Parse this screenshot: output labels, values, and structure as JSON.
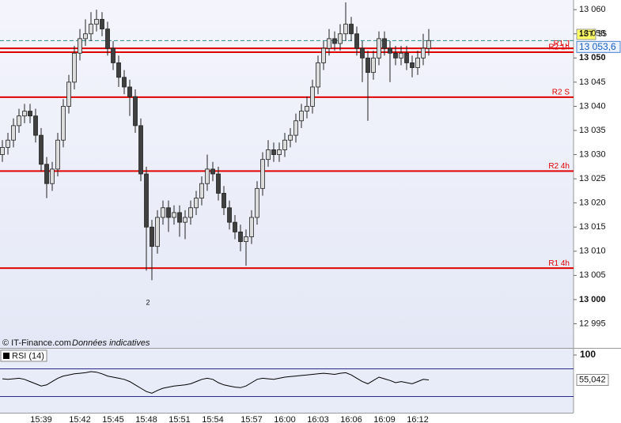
{
  "chart_data": [
    {
      "type": "candlestick",
      "categories": [
        null,
        null,
        null,
        null,
        null,
        null,
        null,
        "15:39",
        null,
        null,
        null,
        null,
        null,
        null,
        "15:42",
        null,
        null,
        null,
        null,
        null,
        "15:45",
        null,
        null,
        null,
        null,
        null,
        "15:48",
        null,
        null,
        null,
        null,
        null,
        "15:51",
        null,
        null,
        null,
        null,
        null,
        "15:54",
        null,
        null,
        null,
        null,
        null,
        null,
        "15:57",
        null,
        null,
        null,
        null,
        null,
        "16:00",
        null,
        null,
        null,
        null,
        null,
        "16:03",
        null,
        null,
        null,
        null,
        null,
        "16:06",
        null,
        null,
        null,
        null,
        null,
        "16:09",
        null,
        null,
        null,
        null,
        null,
        "16:12",
        null,
        null
      ],
      "open": [
        13030,
        13031.5,
        13033,
        13036,
        13038,
        13039,
        13038,
        13034,
        13028,
        13024,
        13027,
        13033,
        13040,
        13045,
        13051,
        13054,
        13055,
        13057,
        13058,
        13056,
        13052,
        13049,
        13046,
        13044,
        13042,
        13036,
        13026,
        13015,
        13011,
        13017,
        13019,
        13017,
        13018,
        13016,
        13017,
        13019,
        13021,
        13024,
        13027,
        13026,
        13022,
        13019,
        13016,
        13014,
        13012,
        13013,
        13017,
        13023,
        13029,
        13031,
        13030,
        13031,
        13033,
        13034,
        13037,
        13039,
        13040,
        13044,
        13049,
        13052,
        13054,
        13053,
        13055,
        13057,
        13055,
        13052,
        13050,
        13047,
        13050,
        13054,
        13052,
        13051,
        13050,
        13051,
        13049,
        13048,
        13050,
        13052
      ],
      "high": [
        13033,
        13034.5,
        13037.5,
        13039.5,
        13040.5,
        13040.5,
        13039.5,
        13035.5,
        13029.5,
        13028.5,
        13034.5,
        13041.5,
        13046.5,
        13052.5,
        13056,
        13058,
        13059.5,
        13060,
        13059.5,
        13057.5,
        13053.5,
        13050.5,
        13047.5,
        13045.5,
        13043.5,
        13037.5,
        13027.5,
        13016.5,
        13018.5,
        13020.5,
        13020.5,
        13019.5,
        13019.5,
        13018.5,
        13020.5,
        13022.5,
        13025.5,
        13030,
        13028.5,
        13027.5,
        13023.5,
        13020.5,
        13017.5,
        13015.5,
        13014.5,
        13018.5,
        13024.5,
        13030.5,
        13033,
        13032.5,
        13032.5,
        13034.5,
        13035.5,
        13038.5,
        13040.5,
        13042,
        13045.5,
        13050.5,
        13053.5,
        13056,
        13055.5,
        13057,
        13061.5,
        13058.5,
        13056.5,
        13053.5,
        13051.5,
        13051.5,
        13055.5,
        13055.5,
        13053.5,
        13052.5,
        13052.5,
        13052.5,
        13050.5,
        13051.5,
        13055,
        13056
      ],
      "low": [
        13028.5,
        13030,
        13031.5,
        13034.5,
        13036.5,
        13036.5,
        13032.5,
        13026.5,
        13021,
        13022.5,
        13025.5,
        13031.5,
        13038.5,
        13043.5,
        13049.5,
        13052.5,
        13053.5,
        13055.5,
        13054.5,
        13050.5,
        13047.5,
        13044,
        13042.5,
        13038,
        13034.5,
        13024.5,
        13006,
        13004,
        13009.5,
        13015.5,
        13014,
        13015.5,
        13013,
        13012.5,
        13015.5,
        13017.5,
        13019.5,
        13022.5,
        13024.5,
        13020.5,
        13017.5,
        13014.5,
        13012.5,
        13010,
        13007,
        13011.5,
        13015.5,
        13021.5,
        13027.5,
        13028.5,
        13028.5,
        13029.5,
        13031.5,
        13032.5,
        13035.5,
        13037.5,
        13038.5,
        13042.5,
        13047.5,
        13050.5,
        13051.5,
        13051.5,
        13053.5,
        13053.5,
        13050.5,
        13045,
        13037,
        13045.5,
        13048.5,
        13050.5,
        13045,
        13048.5,
        13048.5,
        13047.5,
        13046,
        13046.5,
        13048.5,
        13050.5
      ],
      "close": [
        13031.5,
        13033,
        13036,
        13038,
        13039,
        13038,
        13034,
        13028,
        13024,
        13027,
        13033,
        13040,
        13045,
        13051,
        13054,
        13055,
        13057,
        13058,
        13056,
        13052,
        13049,
        13046,
        13044,
        13042,
        13036,
        13026,
        13015,
        13011,
        13017,
        13019,
        13017,
        13018,
        13016,
        13017,
        13019,
        13021,
        13024,
        13027,
        13026,
        13022,
        13019,
        13016,
        13014,
        13012,
        13013,
        13017,
        13023,
        13029,
        13031,
        13030,
        13031,
        13033,
        13034,
        13037,
        13039,
        13040,
        13044,
        13049,
        13052,
        13054,
        13053,
        13055,
        13057,
        13055,
        13052,
        13050,
        13047,
        13050,
        13054,
        13052,
        13051,
        13050,
        13051,
        13049,
        13048,
        13050,
        13052,
        13053.6
      ],
      "up_color": "#dcdcdc",
      "down_color": "#404040",
      "ylim": [
        12990,
        13062
      ],
      "yticks": [
        {
          "value": 12995,
          "label": "12 995"
        },
        {
          "value": 13000,
          "label": "13 000"
        },
        {
          "value": 13005,
          "label": "13 005"
        },
        {
          "value": 13010,
          "label": "13 010"
        },
        {
          "value": 13015,
          "label": "13 015"
        },
        {
          "value": 13020,
          "label": "13 020"
        },
        {
          "value": 13025,
          "label": "13 025"
        },
        {
          "value": 13030,
          "label": "13 030"
        },
        {
          "value": 13035,
          "label": "13 035"
        },
        {
          "value": 13040,
          "label": "13 040"
        },
        {
          "value": 13045,
          "label": "13 045"
        },
        {
          "value": 13050,
          "label": "13 050"
        },
        {
          "value": 13055,
          "label": "13 055"
        },
        {
          "value": 13060,
          "label": "13 060"
        }
      ],
      "levels": [
        {
          "name": "R1 J",
          "value": 13052,
          "color": "#e00000"
        },
        {
          "name": "R2 1h",
          "value": 13051.2,
          "color": "#e00000"
        },
        {
          "name": "R2 S",
          "value": 13041.9,
          "color": "#e00000"
        },
        {
          "name": "R2 4h",
          "value": 13026.6,
          "color": "#e00000"
        },
        {
          "name": "R1 4h",
          "value": 13006.5,
          "color": "#e00000"
        }
      ],
      "current_price": {
        "value": 13053.6,
        "label": "13 053,6",
        "color": "#2a8a8a"
      },
      "badge": "1ST",
      "badge_value": "55",
      "annotation": "2",
      "source": "© IT-Finance.com",
      "source_note": "Données indicatives"
    },
    {
      "type": "line",
      "title": "RSI (14)",
      "color": "#000000",
      "values": [
        57,
        56,
        57,
        58,
        56,
        52,
        48,
        44,
        46,
        52,
        58,
        62,
        64,
        66,
        67,
        68,
        70,
        69,
        66,
        62,
        60,
        58,
        56,
        52,
        46,
        40,
        34,
        31,
        36,
        40,
        42,
        44,
        45,
        46,
        48,
        52,
        56,
        58,
        56,
        50,
        46,
        44,
        42,
        41,
        44,
        50,
        56,
        58,
        57,
        56,
        58,
        60,
        61,
        62,
        63,
        64,
        65,
        66,
        67,
        66,
        65,
        67,
        68,
        64,
        58,
        52,
        48,
        54,
        60,
        57,
        54,
        50,
        52,
        50,
        48,
        52,
        56,
        55.042
      ],
      "value_labels": [
        null,
        null,
        null,
        null,
        null,
        null,
        null,
        null,
        null,
        null,
        null,
        null,
        null,
        null,
        null,
        null,
        null,
        null,
        null,
        null,
        null,
        null,
        null,
        null,
        null,
        null,
        null,
        null,
        null,
        null,
        null,
        null,
        null,
        null,
        null,
        null,
        null,
        null,
        null,
        null,
        null,
        null,
        null,
        null,
        null,
        null,
        null,
        null,
        null,
        null,
        null,
        null,
        null,
        null,
        null,
        null,
        null,
        null,
        null,
        null,
        null,
        null,
        null,
        null,
        null,
        null,
        null,
        null,
        null,
        null,
        null,
        null,
        null,
        null,
        null,
        null,
        null,
        "55,042"
      ],
      "ylim": [
        0,
        100
      ],
      "yticks": [
        100
      ],
      "bands": [
        75,
        25
      ],
      "band_color": "#2a2a8a"
    }
  ]
}
